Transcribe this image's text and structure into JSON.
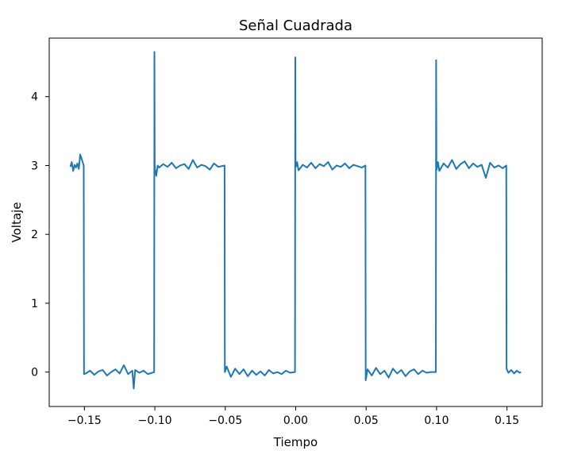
{
  "chart_data": {
    "type": "line",
    "title": "Señal Cuadrada",
    "xlabel": "Tiempo",
    "ylabel": "Voltaje",
    "xlim": [
      -0.175,
      0.175
    ],
    "ylim": [
      -0.5,
      4.85
    ],
    "xticks": [
      -0.15,
      -0.1,
      -0.05,
      0.0,
      0.05,
      0.1,
      0.15
    ],
    "xtick_labels": [
      "−0.15",
      "−0.10",
      "−0.05",
      "0.00",
      "0.05",
      "0.10",
      "0.15"
    ],
    "yticks": [
      0,
      1,
      2,
      3,
      4
    ],
    "ytick_labels": [
      "0",
      "1",
      "2",
      "3",
      "4"
    ],
    "grid": false,
    "series": [
      {
        "color": "#1f77b4",
        "x": [
          -0.16,
          -0.159,
          -0.158,
          -0.157,
          -0.156,
          -0.155,
          -0.154,
          -0.153,
          -0.1505,
          -0.1503,
          -0.149,
          -0.146,
          -0.143,
          -0.14,
          -0.137,
          -0.134,
          -0.131,
          -0.128,
          -0.125,
          -0.122,
          -0.119,
          -0.116,
          -0.115,
          -0.114,
          -0.111,
          -0.108,
          -0.105,
          -0.1005,
          -0.1003,
          -0.1001,
          -0.0999,
          -0.099,
          -0.098,
          -0.097,
          -0.094,
          -0.091,
          -0.088,
          -0.085,
          -0.082,
          -0.079,
          -0.076,
          -0.073,
          -0.07,
          -0.067,
          -0.064,
          -0.061,
          -0.058,
          -0.055,
          -0.0505,
          -0.0503,
          -0.049,
          -0.046,
          -0.043,
          -0.04,
          -0.037,
          -0.034,
          -0.031,
          -0.028,
          -0.025,
          -0.022,
          -0.019,
          -0.016,
          -0.013,
          -0.01,
          -0.007,
          -0.004,
          -0.0005,
          -0.0003,
          -0.0001,
          0.0001,
          0.001,
          0.002,
          0.005,
          0.008,
          0.011,
          0.014,
          0.017,
          0.02,
          0.023,
          0.026,
          0.029,
          0.032,
          0.035,
          0.038,
          0.041,
          0.044,
          0.047,
          0.0495,
          0.0497,
          0.051,
          0.054,
          0.057,
          0.06,
          0.063,
          0.066,
          0.069,
          0.072,
          0.075,
          0.078,
          0.081,
          0.084,
          0.087,
          0.09,
          0.093,
          0.096,
          0.0995,
          0.0997,
          0.0999,
          0.1001,
          0.101,
          0.102,
          0.105,
          0.108,
          0.111,
          0.114,
          0.117,
          0.12,
          0.123,
          0.126,
          0.129,
          0.132,
          0.135,
          0.138,
          0.141,
          0.144,
          0.147,
          0.1495,
          0.1497,
          0.151,
          0.153,
          0.155,
          0.157,
          0.159,
          0.16
        ],
        "y": [
          2.98,
          3.05,
          2.92,
          3.01,
          2.97,
          3.03,
          2.95,
          3.16,
          3.0,
          -0.03,
          -0.02,
          0.02,
          -0.04,
          0.01,
          0.03,
          -0.05,
          0.0,
          0.04,
          -0.02,
          0.1,
          -0.03,
          0.02,
          -0.24,
          0.03,
          -0.01,
          0.02,
          -0.03,
          0.0,
          4.65,
          3.0,
          2.95,
          2.85,
          3.0,
          2.97,
          3.02,
          2.98,
          3.04,
          2.96,
          3.0,
          3.02,
          2.95,
          3.08,
          2.97,
          3.01,
          2.99,
          2.94,
          3.03,
          2.98,
          3.0,
          0.0,
          0.08,
          -0.07,
          0.05,
          -0.03,
          0.04,
          -0.06,
          0.02,
          -0.04,
          0.01,
          -0.05,
          0.03,
          -0.02,
          0.0,
          -0.03,
          0.02,
          -0.01,
          0.0,
          4.57,
          3.0,
          2.98,
          3.05,
          2.93,
          3.01,
          2.97,
          3.04,
          2.96,
          3.02,
          2.99,
          3.05,
          2.94,
          3.0,
          2.98,
          3.03,
          2.96,
          3.01,
          2.99,
          2.97,
          3.0,
          -0.12,
          0.04,
          -0.05,
          0.06,
          -0.03,
          0.02,
          -0.08,
          0.05,
          -0.02,
          0.03,
          -0.06,
          0.01,
          0.04,
          -0.03,
          0.02,
          -0.01,
          0.0,
          0.0,
          4.53,
          3.0,
          2.94,
          3.05,
          2.92,
          3.03,
          2.97,
          3.08,
          2.95,
          3.02,
          3.06,
          2.96,
          3.03,
          2.98,
          3.01,
          2.82,
          3.04,
          2.97,
          3.0,
          2.96,
          3.0,
          0.05,
          -0.01,
          0.03,
          -0.02,
          0.02,
          -0.01,
          0.0
        ]
      }
    ]
  }
}
